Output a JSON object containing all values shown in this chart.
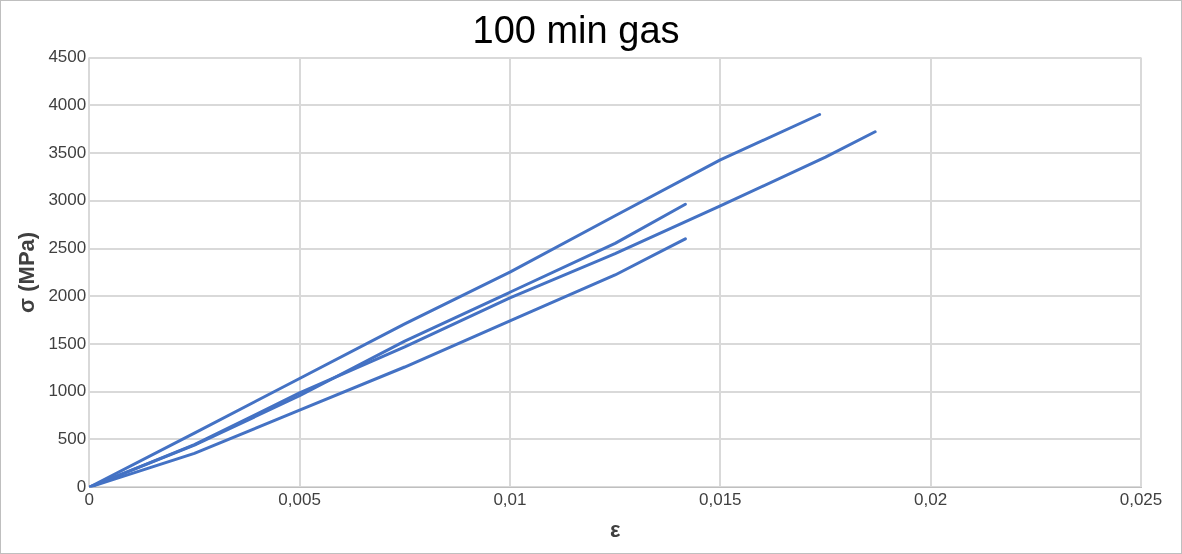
{
  "chart_data": {
    "type": "line",
    "title": "100 min gas",
    "xlabel": "ε",
    "ylabel": "σ (MPa)",
    "xlim": [
      0,
      0.025
    ],
    "xticks": [
      0,
      {
        "value": 0.005,
        "label": "0,005"
      },
      {
        "value": 0.01,
        "label": "0,01"
      },
      {
        "value": 0.015,
        "label": "0,015"
      },
      {
        "value": 0.02,
        "label": "0,02"
      },
      {
        "value": 0.025,
        "label": "0,025"
      }
    ],
    "ylim": [
      0,
      4500
    ],
    "yticks": [
      0,
      500,
      1000,
      1500,
      2000,
      2500,
      3000,
      3500,
      4000,
      4500
    ],
    "grid": true,
    "legend": false,
    "marker": "none",
    "line_style": "solid",
    "series": [
      {
        "color": "#4472c4",
        "x": [
          0,
          0.0025,
          0.005,
          0.0075,
          0.01,
          0.0125,
          0.015,
          0.01736
        ],
        "values": [
          0,
          566,
          1139,
          1711,
          2253,
          2843,
          3428,
          3904
        ]
      },
      {
        "color": "#4472c4",
        "x": [
          0,
          0.0025,
          0.005,
          0.0075,
          0.01,
          0.0125,
          0.015,
          0.0175,
          0.01868
        ],
        "values": [
          0,
          446,
          988,
          1470,
          1982,
          2446,
          2946,
          3458,
          3723
        ]
      },
      {
        "color": "#4472c4",
        "x": [
          0,
          0.0025,
          0.005,
          0.0075,
          0.01,
          0.0125,
          0.01417
        ],
        "values": [
          0,
          440,
          958,
          1530,
          2042,
          2554,
          2964
        ]
      },
      {
        "color": "#4472c4",
        "x": [
          0,
          0.0025,
          0.005,
          0.0075,
          0.01,
          0.0125,
          0.01417
        ],
        "values": [
          0,
          355,
          807,
          1259,
          1741,
          2223,
          2602
        ]
      }
    ]
  }
}
